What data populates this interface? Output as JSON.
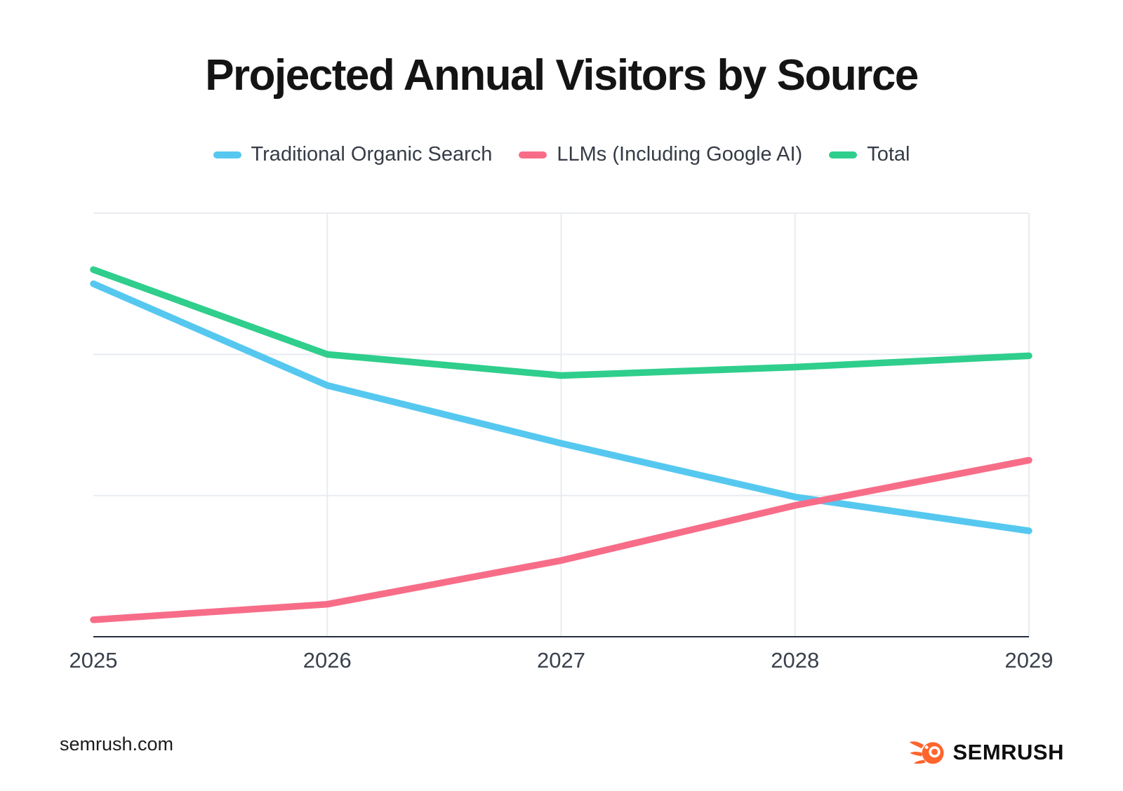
{
  "chart_data": {
    "type": "line",
    "title": "Projected Annual Visitors by Source",
    "xlabel": "",
    "ylabel": "",
    "categories": [
      "2025",
      "2026",
      "2027",
      "2028",
      "2029"
    ],
    "series": [
      {
        "name": "Traditional Organic Search",
        "color": "#56C8F0",
        "values": [
          2.5,
          1.78,
          1.37,
          0.99,
          0.75
        ]
      },
      {
        "name": "LLMs (Including Google AI)",
        "color": "#F76D88",
        "values": [
          0.12,
          0.23,
          0.54,
          0.93,
          1.25
        ]
      },
      {
        "name": "Total",
        "color": "#2FCE8C",
        "values": [
          2.6,
          2.0,
          1.85,
          1.91,
          1.99
        ]
      }
    ],
    "ylim": [
      0,
      3
    ],
    "y_gridlines": [
      1,
      2,
      3
    ],
    "y_axis_labels_visible": false,
    "legend_position": "top",
    "grid_on": true,
    "grid_color": "#E8EBF1",
    "axis_color": "#25303E",
    "tick_label_color": "#3A414D"
  },
  "footer": {
    "site": "semrush.com",
    "logo_text": "SEMRUSH",
    "logo_color": "#FF642D"
  }
}
